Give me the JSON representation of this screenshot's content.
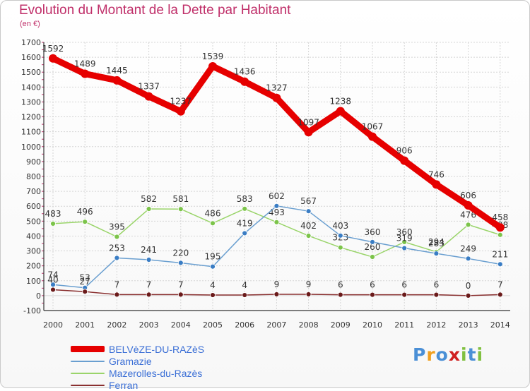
{
  "colors": {
    "title": "#c0306a",
    "grid": "#d5d5d5",
    "axis": "#333333",
    "legend_text": "#3b6fd6"
  },
  "logo": {
    "letters": [
      "P",
      "r",
      "o",
      "x",
      "i",
      "t",
      "i"
    ],
    "colors": [
      "#4a8fd6",
      "#f0a020",
      "#4a8fd6",
      "#d02020",
      "#80c040",
      "#4a8fd6",
      "#80c040"
    ]
  },
  "chart_data": {
    "type": "line",
    "title": "Evolution du Montant de la Dette par Habitant",
    "subtitle": "(en €)",
    "x": [
      "2000",
      "2001",
      "2002",
      "2003",
      "2004",
      "2005",
      "2006",
      "2007",
      "2008",
      "2009",
      "2010",
      "2011",
      "2012",
      "2013",
      "2014"
    ],
    "ylim": [
      -100,
      1700
    ],
    "yticks": [
      -100,
      0,
      100,
      200,
      300,
      400,
      500,
      600,
      700,
      800,
      900,
      1000,
      1100,
      1200,
      1300,
      1400,
      1500,
      1600,
      1700
    ],
    "grid": true,
    "legend": "bottom-left",
    "series": [
      {
        "name": "BELVèZE-DU-RAZèS",
        "color": "#e60000",
        "marker": "#e60000",
        "width": 9,
        "values": [
          1592,
          1489,
          1445,
          1337,
          1237,
          1539,
          1436,
          1327,
          1097,
          1238,
          1067,
          906,
          746,
          606,
          458
        ]
      },
      {
        "name": "Gramazie",
        "color": "#6a9fd0",
        "marker": "#3a7dc4",
        "width": 1.5,
        "values": [
          74,
          53,
          253,
          241,
          220,
          195,
          419,
          602,
          567,
          403,
          360,
          319,
          283,
          249,
          211
        ]
      },
      {
        "name": "Mazerolles-du-Razès",
        "color": "#9ad46a",
        "marker": "#7cc44a",
        "width": 1.5,
        "values": [
          483,
          496,
          395,
          582,
          581,
          486,
          583,
          493,
          402,
          323,
          260,
          360,
          294,
          476,
          408
        ]
      },
      {
        "name": "Ferran",
        "color": "#8a3030",
        "marker": "#6a1a1a",
        "width": 1.5,
        "values": [
          40,
          27,
          7,
          7,
          7,
          4,
          4,
          9,
          9,
          6,
          6,
          6,
          6,
          0,
          7
        ]
      }
    ]
  }
}
